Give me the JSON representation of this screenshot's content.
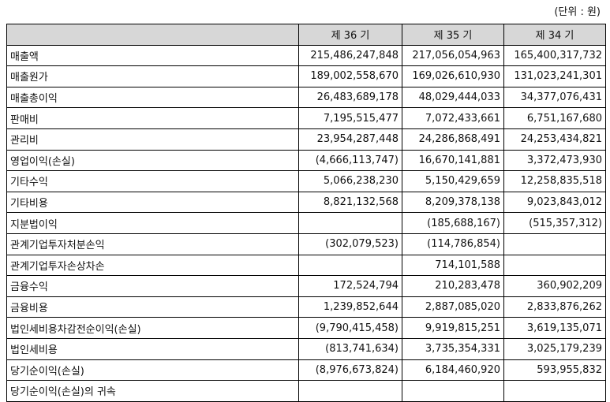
{
  "unit_label": "(단위 : 원)",
  "headers": [
    "",
    "제 36 기",
    "제 35 기",
    "제 34 기"
  ],
  "rows": [
    {
      "label": "매출액",
      "v1": "215,486,247,848",
      "v2": "217,056,054,963",
      "v3": "165,400,317,732"
    },
    {
      "label": "매출원가",
      "v1": "189,002,558,670",
      "v2": "169,026,610,930",
      "v3": "131,023,241,301"
    },
    {
      "label": "매출총이익",
      "v1": "26,483,689,178",
      "v2": "48,029,444,033",
      "v3": "34,377,076,431"
    },
    {
      "label": "판매비",
      "v1": "7,195,515,477",
      "v2": "7,072,433,661",
      "v3": "6,751,167,680"
    },
    {
      "label": "관리비",
      "v1": "23,954,287,448",
      "v2": "24,286,868,491",
      "v3": "24,253,434,821"
    },
    {
      "label": "영업이익(손실)",
      "v1": "(4,666,113,747)",
      "v2": "16,670,141,881",
      "v3": "3,372,473,930"
    },
    {
      "label": "기타수익",
      "v1": "5,066,238,230",
      "v2": "5,150,429,659",
      "v3": "12,258,835,518"
    },
    {
      "label": "기타비용",
      "v1": "8,821,132,568",
      "v2": "8,209,378,138",
      "v3": "9,023,843,012"
    },
    {
      "label": "지분법이익",
      "v1": "",
      "v2": "(185,688,167)",
      "v3": "(515,357,312)"
    },
    {
      "label": "관계기업투자처분손익",
      "v1": "(302,079,523)",
      "v2": "(114,786,854)",
      "v3": ""
    },
    {
      "label": "관계기업투자손상차손",
      "v1": "",
      "v2": "714,101,588",
      "v3": ""
    },
    {
      "label": "금융수익",
      "v1": "172,524,794",
      "v2": "210,283,478",
      "v3": "360,902,209"
    },
    {
      "label": "금융비용",
      "v1": "1,239,852,644",
      "v2": "2,887,085,020",
      "v3": "2,833,876,262"
    },
    {
      "label": "법인세비용차감전순이익(손실)",
      "v1": "(9,790,415,458)",
      "v2": "9,919,815,251",
      "v3": "3,619,135,071"
    },
    {
      "label": "법인세비용",
      "v1": "(813,741,634)",
      "v2": "3,735,354,331",
      "v3": "3,025,179,239"
    },
    {
      "label": "당기순이익(손실)",
      "v1": "(8,976,673,824)",
      "v2": "6,184,460,920",
      "v3": "593,955,832"
    },
    {
      "label": "당기순이익(손실)의 귀속",
      "v1": "",
      "v2": "",
      "v3": ""
    }
  ]
}
